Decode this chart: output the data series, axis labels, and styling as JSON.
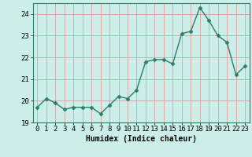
{
  "x": [
    0,
    1,
    2,
    3,
    4,
    5,
    6,
    7,
    8,
    9,
    10,
    11,
    12,
    13,
    14,
    15,
    16,
    17,
    18,
    19,
    20,
    21,
    22,
    23
  ],
  "y": [
    19.7,
    20.1,
    19.9,
    19.6,
    19.7,
    19.7,
    19.7,
    19.4,
    19.8,
    20.2,
    20.1,
    20.5,
    21.8,
    21.9,
    21.9,
    21.7,
    23.1,
    23.2,
    24.3,
    23.7,
    23.0,
    22.7,
    21.2,
    21.6
  ],
  "line_color": "#2d7d6b",
  "marker": "D",
  "marker_size": 2.5,
  "linewidth": 1.0,
  "bg_color": "#cceee8",
  "grid_color_h": "#d4a0a0",
  "grid_color_v": "#e0a0a0",
  "xlabel": "Humidex (Indice chaleur)",
  "ylim": [
    19,
    24.5
  ],
  "xlim": [
    -0.5,
    23.5
  ],
  "yticks": [
    19,
    20,
    21,
    22,
    23,
    24
  ],
  "xticks": [
    0,
    1,
    2,
    3,
    4,
    5,
    6,
    7,
    8,
    9,
    10,
    11,
    12,
    13,
    14,
    15,
    16,
    17,
    18,
    19,
    20,
    21,
    22,
    23
  ],
  "xlabel_fontsize": 7,
  "tick_fontsize": 6.5
}
